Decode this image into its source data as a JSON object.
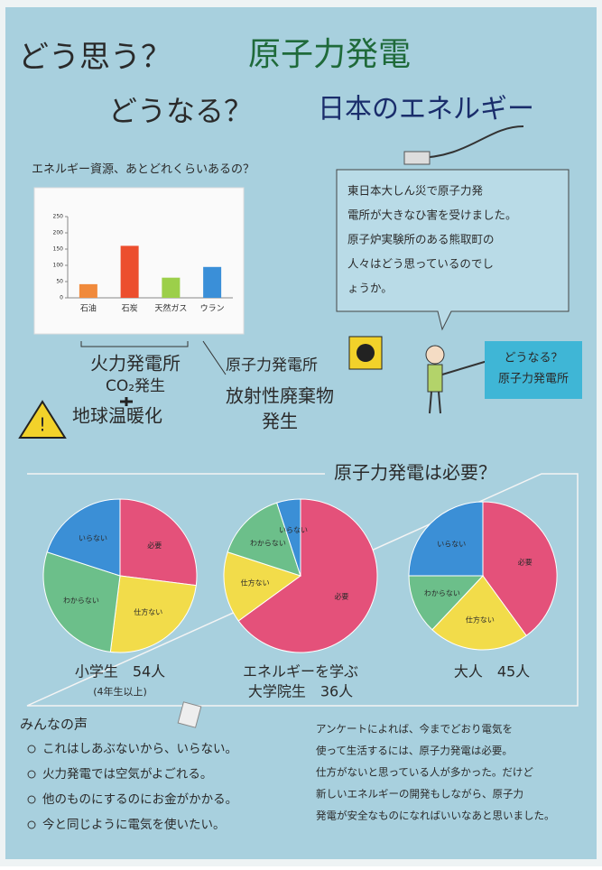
{
  "title": {
    "line1a": "どう思う？",
    "line1b": "原子力発電",
    "line2a": "どうなる？",
    "line2b": "日本のエネルギー"
  },
  "energy": {
    "title": "エネルギー資源、あとどれくらいあるの？",
    "categories": [
      "石油",
      "石炭",
      "天然ガス",
      "ウラン"
    ],
    "values": [
      42,
      160,
      62,
      95
    ],
    "colors": [
      "#f08a3c",
      "#ec4e2e",
      "#9ccf4a",
      "#3a8fd8"
    ],
    "ylim": [
      0,
      250
    ],
    "yticks": [
      0,
      50,
      100,
      150,
      200,
      250
    ]
  },
  "thermal": [
    "火力発電所",
    "CO₂発生",
    "地球温暖化"
  ],
  "nuclear": [
    "原子力発電所",
    "放射性廃棄物",
    "発生"
  ],
  "speech": [
    "東日本大しん災で原子力発",
    "電所が大きなひ害を受けました。",
    "原子炉実験所のある熊取町の",
    "人々はどう思っているのでし",
    "ょうか。"
  ],
  "sign": [
    "どうなる？",
    "原子力発電所"
  ],
  "survey": {
    "title": "原子力発電は必要？",
    "colors": [
      "#e4517a",
      "#f2dc4a",
      "#6cbf8a",
      "#3b8fd6"
    ],
    "pies": [
      {
        "label": [
          "小学生　54人",
          "(4年生以上)"
        ],
        "slices": [
          {
            "name": "必要",
            "value": 27
          },
          {
            "name": "仕方ない",
            "value": 25
          },
          {
            "name": "わからない",
            "value": 28
          },
          {
            "name": "いらない",
            "value": 20
          }
        ]
      },
      {
        "label": [
          "エネルギーを学ぶ",
          "大学院生　36人"
        ],
        "slices": [
          {
            "name": "必要",
            "value": 65
          },
          {
            "name": "仕方ない",
            "value": 15
          },
          {
            "name": "わからない",
            "value": 15
          },
          {
            "name": "いらない",
            "value": 5
          }
        ]
      },
      {
        "label": [
          "大人　45人"
        ],
        "slices": [
          {
            "name": "必要",
            "value": 40
          },
          {
            "name": "仕方ない",
            "value": 22
          },
          {
            "name": "わからない",
            "value": 13
          },
          {
            "name": "いらない",
            "value": 25
          }
        ]
      }
    ]
  },
  "voices": {
    "title": "みんなの声",
    "items": [
      "これはしあぶないから、いらない。",
      "火力発電では空気がよごれる。",
      "他のものにするのにお金がかかる。",
      "今と同じように電気を使いたい。"
    ]
  },
  "conclusion": [
    "アンケートによれば、今までどおり電気を",
    "使って生活するには、原子力発電は必要。",
    "仕方がないと思っている人が多かった。だけど",
    "新しいエネルギーの開発もしながら、原子力",
    "発電が安全なものになればいいなあと思いました。"
  ]
}
